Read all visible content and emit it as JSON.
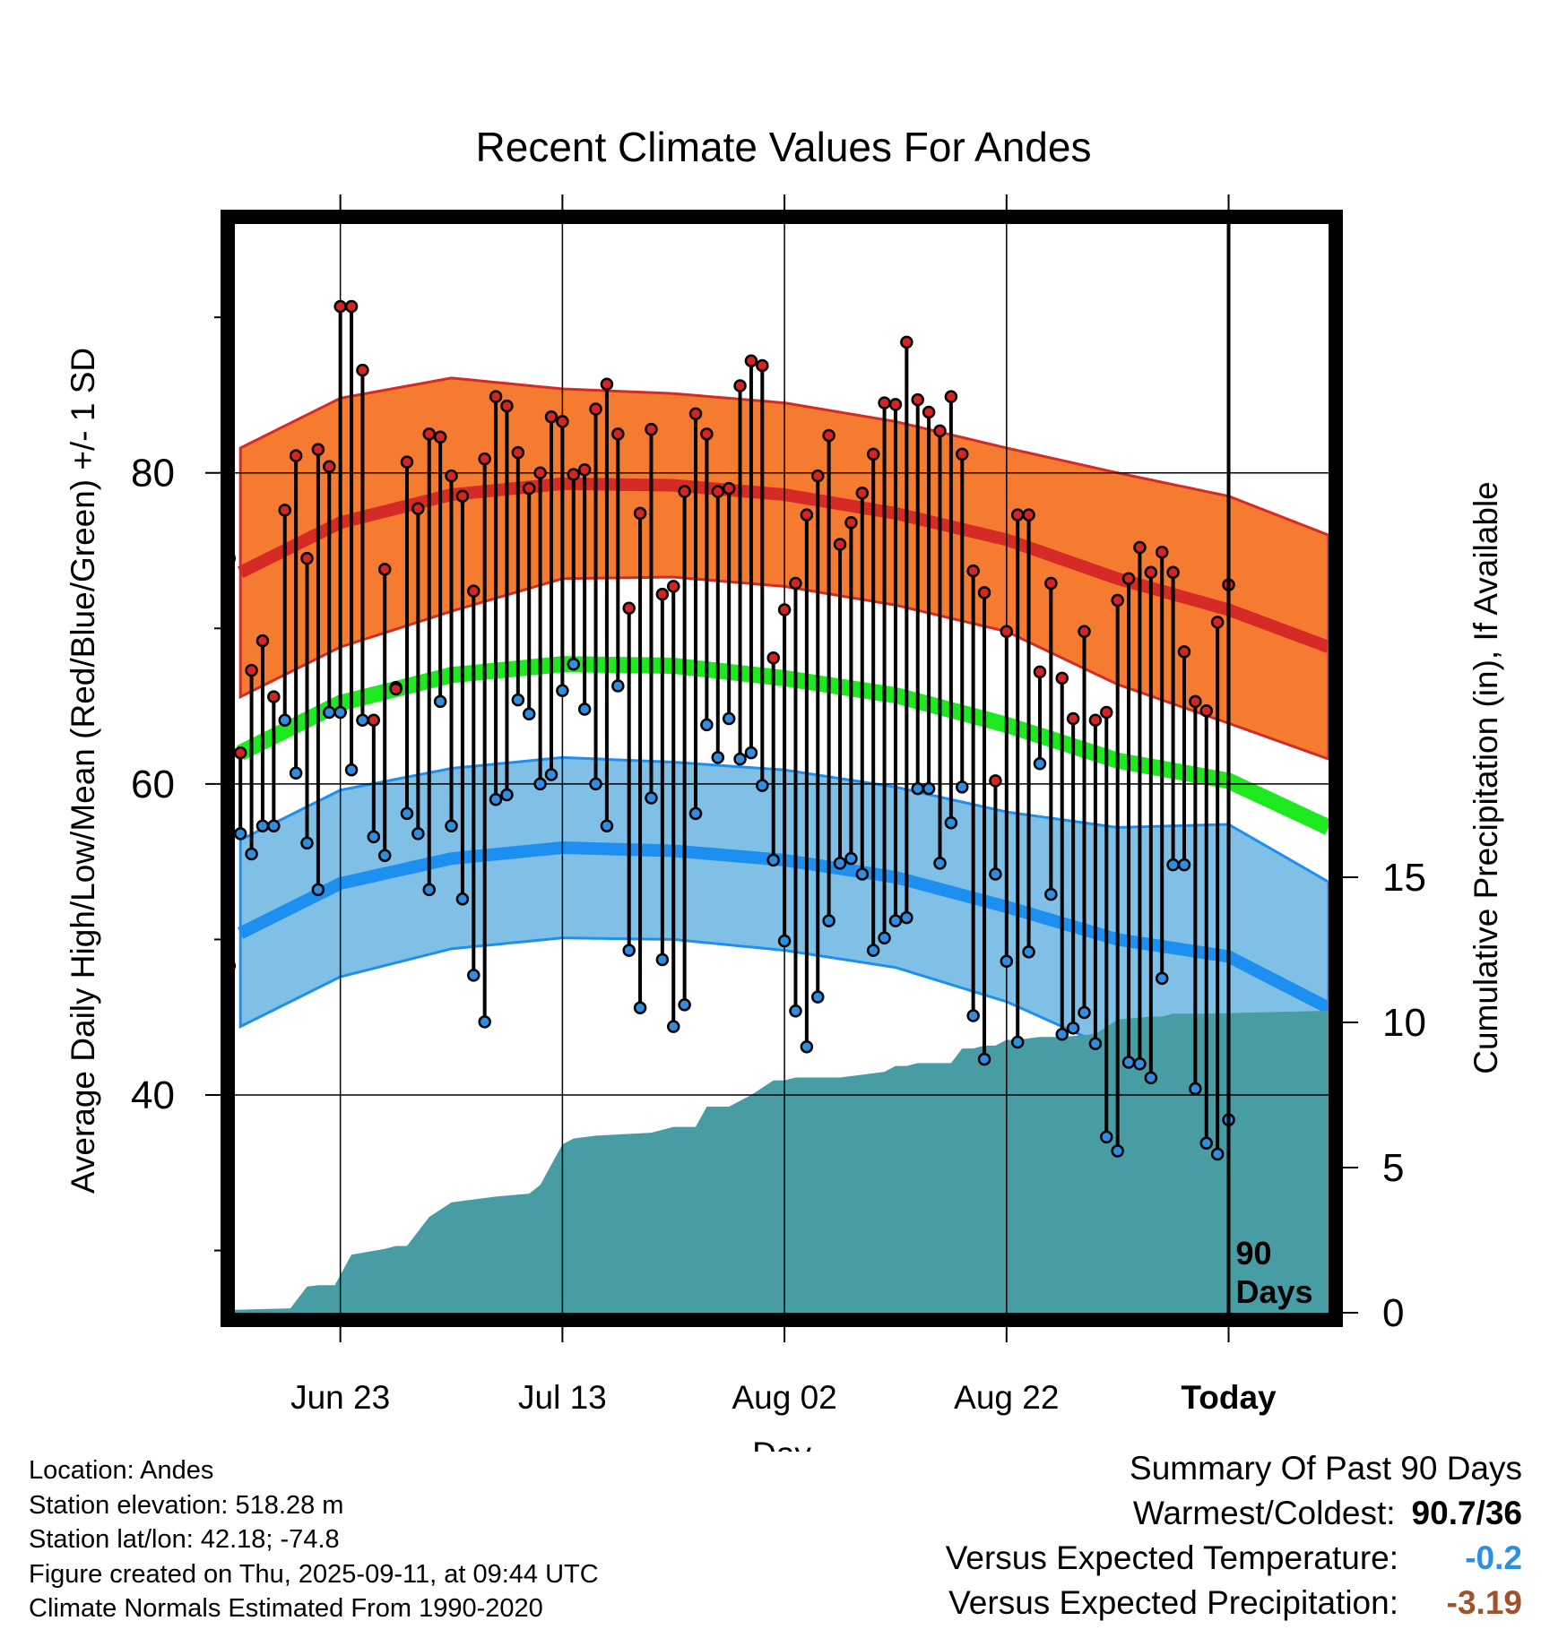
{
  "chart_data": {
    "type": "line",
    "title": "Recent Climate Values For Andes",
    "xlabel": "Day",
    "ylabel": "Average Daily High/Low/Mean (Red/Blue/Green) +/- 1 SD",
    "y2label": "Cumulative Precipitation (in), If Available",
    "ylim": [
      26,
      96
    ],
    "y2lim": [
      0,
      37.5
    ],
    "xlim": [
      -89.5,
      9
    ],
    "x_ticks": [
      {
        "x": -80,
        "label": "Jun 23"
      },
      {
        "x": -60,
        "label": "Jul 13"
      },
      {
        "x": -40,
        "label": "Aug 02"
      },
      {
        "x": -20,
        "label": "Aug 22"
      },
      {
        "x": 0,
        "label": "Today"
      }
    ],
    "y_ticks": [
      40,
      60,
      80
    ],
    "y2_ticks": [
      0,
      5,
      10,
      15
    ],
    "today_label": "90 Days",
    "grid": true,
    "colors": {
      "high_band": "#f47b30",
      "high_mean": "#d62a26",
      "low_band": "#80bfe6",
      "low_mean": "#1c8ff0",
      "mean": "#1ee81e",
      "precip": "#489ca4",
      "high_point": "#d42424",
      "low_point": "#2f8ee0",
      "versus_temp": "#2b8fe3",
      "versus_precip": "#a0522d"
    },
    "normals": {
      "x": [
        -89,
        -80,
        -70,
        -60,
        -50,
        -40,
        -30,
        -20,
        -10,
        0,
        9
      ],
      "high_mean": [
        73.6,
        76.8,
        78.6,
        79.3,
        79.2,
        78.6,
        77.4,
        75.7,
        73.2,
        71.2,
        68.8
      ],
      "high_sd": [
        8,
        8,
        7.5,
        6.1,
        5.9,
        5.9,
        5.9,
        5.9,
        6.8,
        7.3,
        7.2
      ],
      "mean": [
        62.0,
        65.2,
        67.0,
        67.7,
        67.6,
        66.8,
        65.7,
        63.8,
        61.5,
        60.2,
        57.2
      ],
      "low_mean": [
        50.4,
        53.6,
        55.2,
        55.9,
        55.7,
        55.1,
        54.0,
        52.1,
        50.0,
        48.9,
        45.6
      ],
      "low_sd": [
        6,
        6,
        5.8,
        5.8,
        5.7,
        5.8,
        5.8,
        6.1,
        7.2,
        8.5,
        8.1
      ]
    },
    "series": [
      {
        "name": "High",
        "values": [
          74.5,
          62,
          67.3,
          69.2,
          65.6,
          77.6,
          81.1,
          74.5,
          81.5,
          80.4,
          90.7,
          90.7,
          86.6,
          64.1,
          73.8,
          66.1,
          80.7,
          77.7,
          82.5,
          82.3,
          79.8,
          78.5,
          72.4,
          80.9,
          84.9,
          84.3,
          81.3,
          79.0,
          80.0,
          83.6,
          83.3,
          79.9,
          80.2,
          84.1,
          85.7,
          82.5,
          71.3,
          77.4,
          82.8,
          72.2,
          72.7,
          78.8,
          83.8,
          82.5,
          78.8,
          79.0,
          85.6,
          87.2,
          86.9,
          68.1,
          71.2,
          72.9,
          77.3,
          79.8,
          82.4,
          75.4,
          76.8,
          78.7,
          81.2,
          84.5,
          84.4,
          88.4,
          84.7,
          83.9,
          82.7,
          84.9,
          81.2,
          73.7,
          72.3,
          60.2,
          69.8,
          77.3,
          77.3,
          67.2,
          72.9,
          66.8,
          64.2,
          69.8,
          64.1,
          64.6,
          71.8,
          73.2,
          75.2,
          73.6,
          74.9,
          73.6,
          68.5,
          65.3,
          64.7,
          70.4,
          72.8
        ]
      },
      {
        "name": "Low",
        "values": [
          48.3,
          56.8,
          55.5,
          57.3,
          57.3,
          64.1,
          60.7,
          56.2,
          53.2,
          64.6,
          64.6,
          60.9,
          64.1,
          56.6,
          55.4,
          66.2,
          58.1,
          56.8,
          53.2,
          65.3,
          57.3,
          52.6,
          47.7,
          44.7,
          59.0,
          59.3,
          65.4,
          64.5,
          60.0,
          60.6,
          66.0,
          67.7,
          64.8,
          60.0,
          57.3,
          66.3,
          49.3,
          45.6,
          59.1,
          48.7,
          44.4,
          45.8,
          58.1,
          63.8,
          61.7,
          64.2,
          61.6,
          62.0,
          59.9,
          55.1,
          49.9,
          45.4,
          43.1,
          46.3,
          51.2,
          54.9,
          55.2,
          54.2,
          49.3,
          50.1,
          51.2,
          51.4,
          59.7,
          59.7,
          54.9,
          57.5,
          59.8,
          45.1,
          42.3,
          54.2,
          48.6,
          43.4,
          49.2,
          61.3,
          52.9,
          43.9,
          44.3,
          45.3,
          43.3,
          37.3,
          36.4,
          42.1,
          42.0,
          41.1,
          47.5,
          54.8,
          54.8,
          40.4,
          36.9,
          36.2,
          38.4
        ]
      },
      {
        "name": "Precip",
        "x": [
          -89.5,
          -84.5,
          -84,
          -83,
          -82,
          -80.5,
          -79,
          -76,
          -75,
          -74,
          -72,
          -70,
          -68,
          -66,
          -63,
          -62,
          -61,
          -60,
          -59,
          -57,
          -52,
          -50,
          -48,
          -47,
          -45,
          -43,
          -41,
          -40,
          -39,
          -37,
          -35,
          -33,
          -31,
          -30,
          -29,
          -28,
          -27,
          -25,
          -24,
          -23,
          -22,
          -21,
          -20,
          -19,
          -17,
          -15,
          -12,
          -10,
          -7,
          -6,
          -5,
          -4,
          -3,
          -2,
          9
        ],
        "values": [
          0.1,
          0.15,
          0.4,
          0.9,
          0.95,
          0.95,
          2.0,
          2.2,
          2.3,
          2.3,
          3.3,
          3.8,
          3.9,
          4.0,
          4.1,
          4.4,
          5.1,
          5.8,
          6.0,
          6.1,
          6.2,
          6.4,
          6.4,
          7.1,
          7.1,
          7.5,
          8.0,
          8.0,
          8.1,
          8.1,
          8.1,
          8.2,
          8.3,
          8.5,
          8.5,
          8.6,
          8.6,
          8.6,
          9.1,
          9.1,
          9.2,
          9.2,
          9.4,
          9.4,
          9.5,
          9.5,
          9.6,
          10.1,
          10.2,
          10.2,
          10.3,
          10.3,
          10.3,
          10.3,
          10.4
        ]
      }
    ]
  },
  "info": {
    "location": "Location: Andes",
    "elevation": "Station elevation: 518.28 m",
    "latlon": "Station lat/lon: 42.18; -74.8",
    "created": "Figure created on Thu, 2025-09-11, at 09:44 UTC",
    "normals": "Climate Normals Estimated From 1990-2020"
  },
  "summary": {
    "title": "Summary Of Past 90 Days",
    "warmest_label": "Warmest/Coldest:",
    "warmest_value": "90.7/36",
    "temp_label": "Versus Expected Temperature:",
    "temp_value": "-0.2",
    "precip_label": "Versus Expected Precipitation:",
    "precip_value": "-3.19"
  }
}
